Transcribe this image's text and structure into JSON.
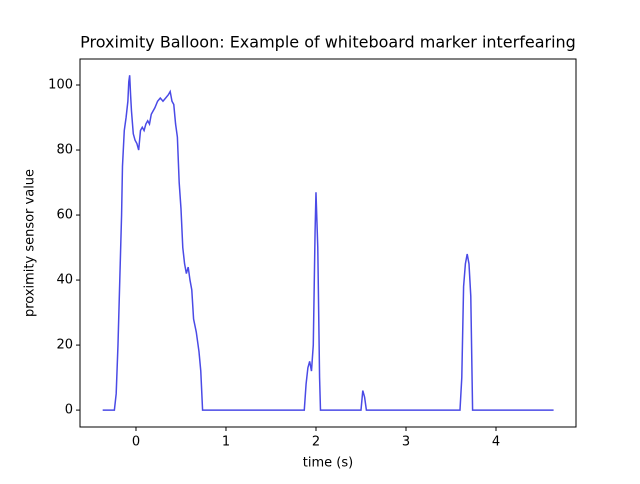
{
  "chart_data": {
    "type": "line",
    "title": "Proximity Balloon: Example of whiteboard marker interfearing",
    "x_label": "time (s)",
    "y_label": "proximity sensor value",
    "xlim": [
      -0.622,
      4.889
    ],
    "ylim": [
      -5.2,
      108
    ],
    "xticks": [
      0,
      1,
      2,
      3,
      4
    ],
    "yticks": [
      0,
      20,
      40,
      60,
      80,
      100
    ],
    "grid": false,
    "series": [
      {
        "name": "proximity",
        "color": "#4a4ae6",
        "x": [
          -0.37,
          -0.24,
          -0.22,
          -0.2,
          -0.18,
          -0.16,
          -0.15,
          -0.13,
          -0.11,
          -0.09,
          -0.08,
          -0.07,
          -0.06,
          -0.05,
          -0.03,
          -0.01,
          0.01,
          0.03,
          0.05,
          0.07,
          0.09,
          0.11,
          0.13,
          0.15,
          0.17,
          0.19,
          0.21,
          0.24,
          0.27,
          0.3,
          0.33,
          0.36,
          0.38,
          0.4,
          0.42,
          0.44,
          0.46,
          0.48,
          0.5,
          0.52,
          0.54,
          0.56,
          0.58,
          0.6,
          0.62,
          0.64,
          0.67,
          0.7,
          0.72,
          0.74,
          1.87,
          1.89,
          1.91,
          1.93,
          1.95,
          1.97,
          1.99,
          2.0,
          2.02,
          2.04,
          2.05,
          2.5,
          2.52,
          2.54,
          2.56,
          3.6,
          3.62,
          3.64,
          3.66,
          3.68,
          3.7,
          3.72,
          3.74,
          4.64
        ],
        "values": [
          0,
          0,
          5,
          20,
          40,
          60,
          75,
          86,
          90,
          95,
          101,
          103,
          97,
          92,
          85,
          83,
          82,
          80,
          86,
          87,
          86,
          88,
          89,
          88,
          91,
          92,
          93,
          95,
          96,
          95,
          96,
          97,
          98,
          95,
          94,
          88,
          84,
          70,
          62,
          50,
          45,
          42,
          44,
          40,
          37,
          28,
          24,
          18,
          12,
          0,
          0,
          8,
          13,
          15,
          12,
          20,
          55,
          67,
          50,
          10,
          0,
          0,
          6,
          4,
          0,
          0,
          10,
          38,
          45,
          48,
          45,
          35,
          0,
          0
        ]
      }
    ]
  }
}
